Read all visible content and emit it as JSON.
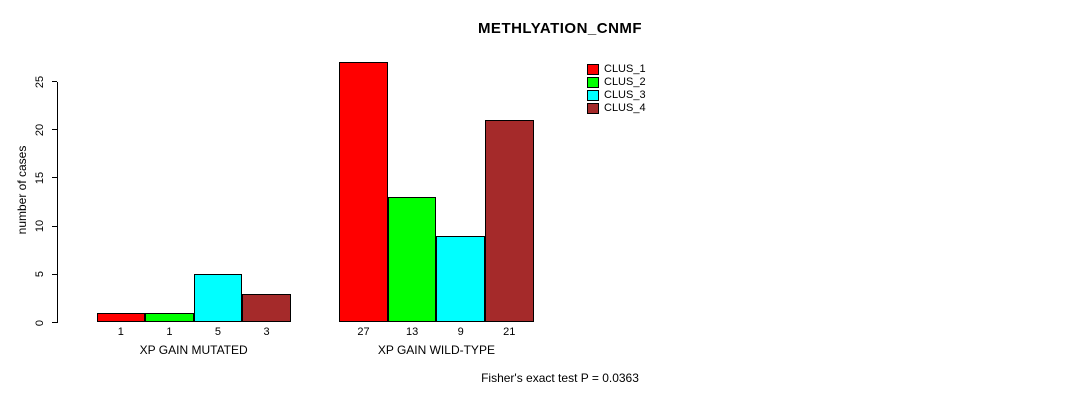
{
  "title": "METHLYATION_CNMF",
  "footer": "Fisher's exact test P = 0.0363",
  "chart_data": {
    "type": "bar",
    "title": "METHLYATION_CNMF",
    "xlabel": "",
    "ylabel": "number of cases",
    "ylim": [
      0,
      27
    ],
    "yticks": [
      0,
      5,
      10,
      15,
      20,
      25
    ],
    "grid": false,
    "legend_position": "top-right",
    "categories": [
      "XP GAIN MUTATED",
      "XP GAIN WILD-TYPE"
    ],
    "groups": [
      {
        "label": "XP GAIN MUTATED",
        "values": [
          1,
          1,
          5,
          3
        ]
      },
      {
        "label": "XP GAIN WILD-TYPE",
        "values": [
          27,
          13,
          9,
          21
        ]
      }
    ],
    "series": [
      {
        "name": "CLUS_1",
        "color": "#FF0000",
        "values": [
          1,
          27
        ]
      },
      {
        "name": "CLUS_2",
        "color": "#00FF00",
        "values": [
          1,
          13
        ]
      },
      {
        "name": "CLUS_3",
        "color": "#00FFFF",
        "values": [
          5,
          9
        ]
      },
      {
        "name": "CLUS_4",
        "color": "#A52A2A",
        "values": [
          3,
          21
        ]
      }
    ],
    "bar_count_labels": [
      "1",
      "1",
      "5",
      "3",
      "27",
      "13",
      "9",
      "21"
    ],
    "annotation": "Fisher's exact test P = 0.0363"
  }
}
